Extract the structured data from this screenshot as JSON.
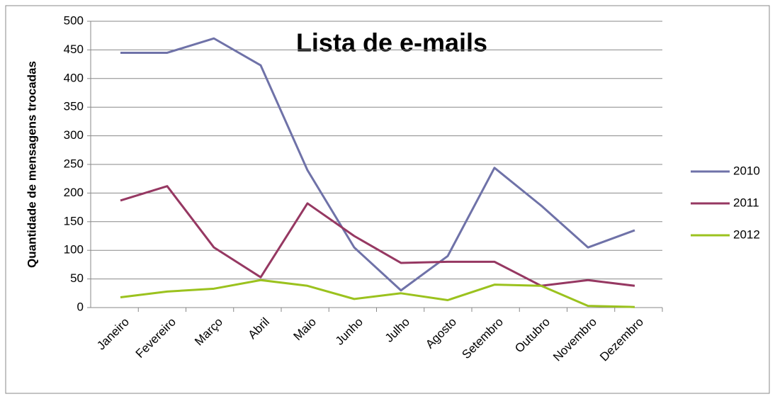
{
  "chart_data": {
    "type": "line",
    "title": "Lista de e-mails",
    "y_axis_label": "Quantidade de mensagens trocadas",
    "categories": [
      "Janeiro",
      "Fevereiro",
      "Março",
      "Abril",
      "Maio",
      "Junho",
      "Julho",
      "Agosto",
      "Setembro",
      "Outubro",
      "Novembro",
      "Dezembro"
    ],
    "series": [
      {
        "name": "2010",
        "color": "#6f72a8",
        "values": [
          445,
          445,
          470,
          423,
          240,
          105,
          30,
          90,
          244,
          178,
          105,
          135
        ]
      },
      {
        "name": "2011",
        "color": "#963862",
        "values": [
          187,
          212,
          105,
          53,
          182,
          125,
          78,
          80,
          80,
          38,
          48,
          38
        ]
      },
      {
        "name": "2012",
        "color": "#9bc21e",
        "values": [
          18,
          28,
          33,
          48,
          38,
          15,
          25,
          13,
          40,
          38,
          3,
          1
        ]
      }
    ],
    "ylim": [
      0,
      500
    ],
    "yticks": [
      0,
      50,
      100,
      150,
      200,
      250,
      300,
      350,
      400,
      450,
      500
    ],
    "grid": true,
    "legend": "right"
  }
}
